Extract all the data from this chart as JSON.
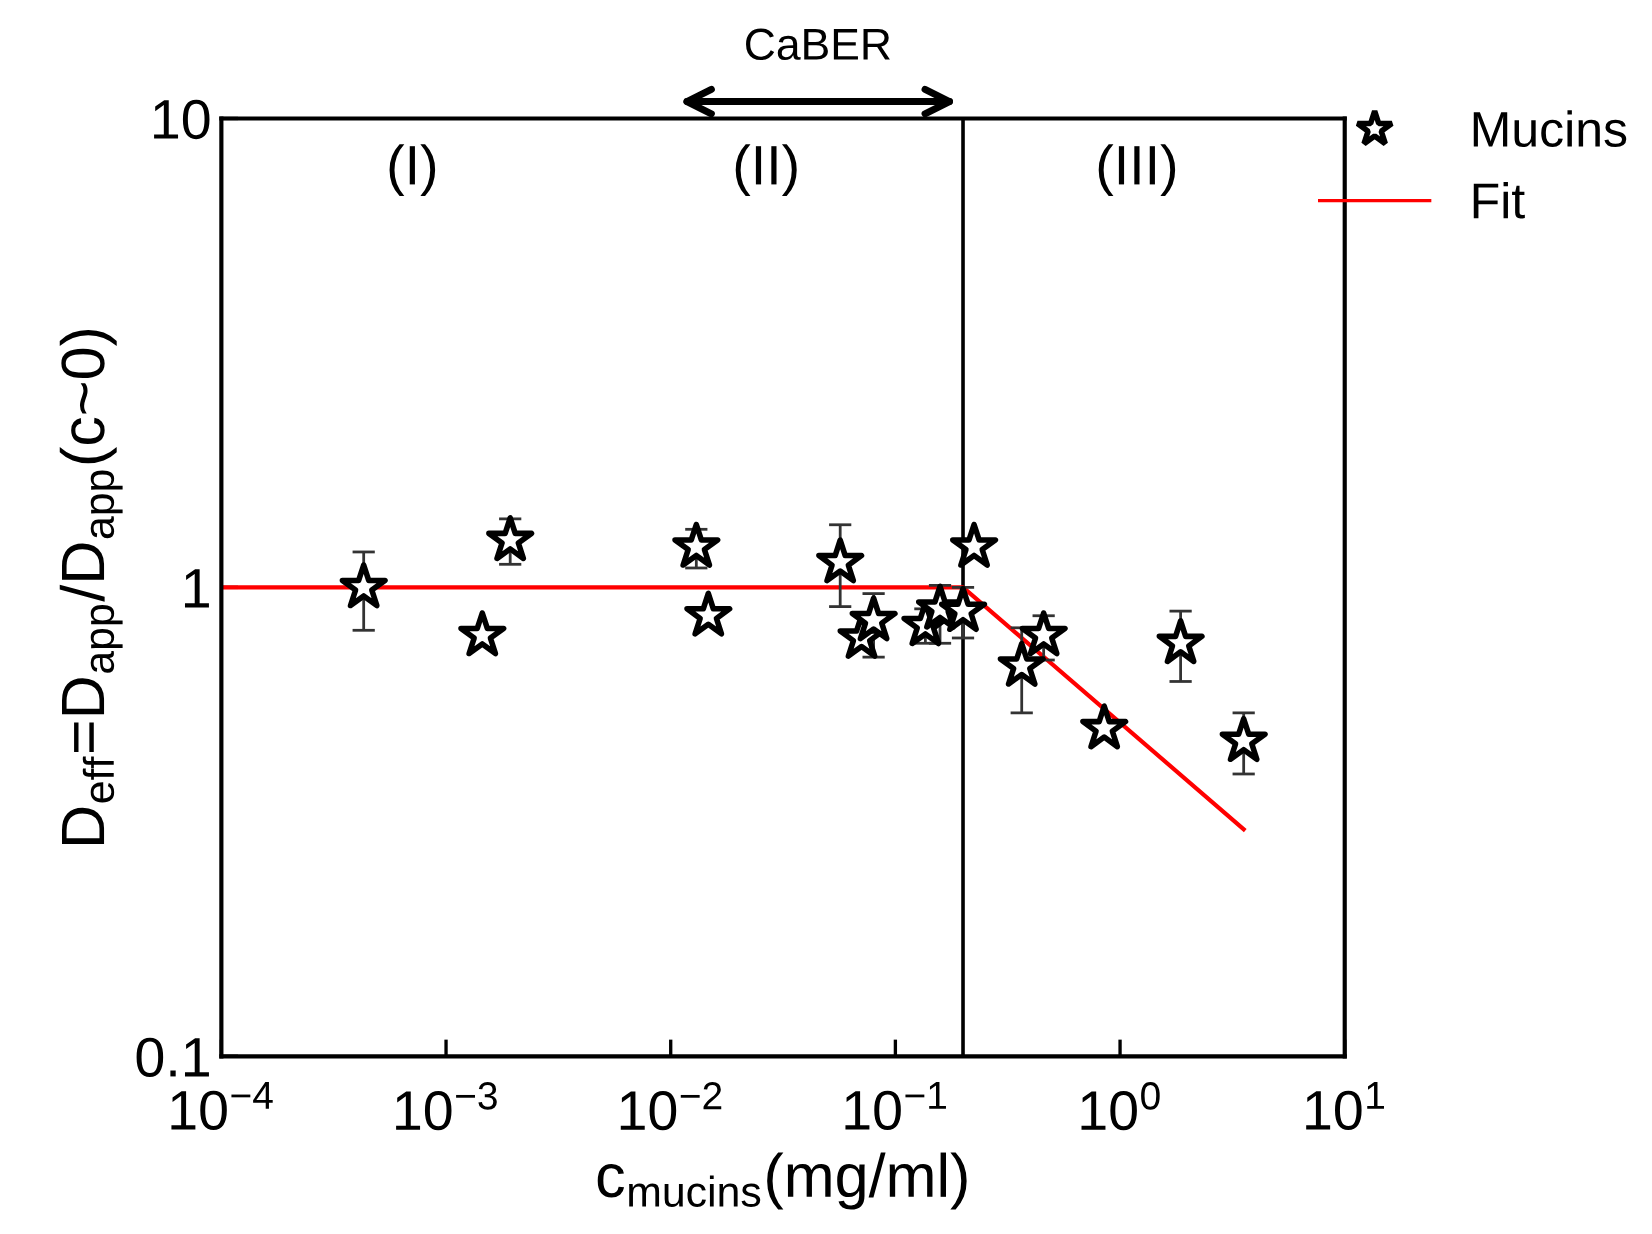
{
  "chart_data": {
    "type": "scatter",
    "xlabel": "c$_{mucins}$(mg/ml)",
    "ylabel": "D$_{eff}$=D$_{app}$/D$_{app}$(c~0)",
    "log": "xy",
    "xlim": [
      0.0001,
      10
    ],
    "ylim": [
      0.1,
      10
    ],
    "xticks": [
      {
        "value": 0.0001,
        "label": "10$^{−4}$"
      },
      {
        "value": 0.001,
        "label": "10$^{−3}$"
      },
      {
        "value": 0.01,
        "label": "10$^{−2}$"
      },
      {
        "value": 0.1,
        "label": "10$^{−1}$"
      },
      {
        "value": 1,
        "label": "10$^{0}$"
      },
      {
        "value": 10,
        "label": "10$^{1}$"
      }
    ],
    "yticks": [
      0.1,
      1,
      10
    ],
    "grid": false,
    "legend": "top right",
    "marker": "star",
    "series": [
      {
        "name": "Mucins",
        "color": "#000000",
        "x": [
          0.00043,
          0.00145,
          0.00193,
          0.013,
          0.0147,
          0.0568,
          0.0707,
          0.08,
          0.136,
          0.158,
          0.2,
          0.224,
          0.365,
          0.457,
          0.85,
          1.86,
          3.55
        ],
        "values": [
          1.0,
          0.79,
          1.26,
          1.22,
          0.87,
          1.13,
          0.78,
          0.85,
          0.83,
          0.9,
          0.89,
          1.22,
          0.68,
          0.79,
          0.5,
          0.76,
          0.47
        ],
        "errors": [
          [
            0.81,
            1.19
          ],
          null,
          [
            1.12,
            1.4
          ],
          [
            1.1,
            1.33
          ],
          null,
          [
            0.91,
            1.36
          ],
          null,
          [
            0.71,
            0.97
          ],
          [
            0.76,
            0.9
          ],
          [
            0.76,
            1.01
          ],
          [
            0.78,
            1.0
          ],
          null,
          [
            0.54,
            0.82
          ],
          [
            0.7,
            0.87
          ],
          null,
          [
            0.63,
            0.89
          ],
          [
            0.4,
            0.54
          ]
        ]
      },
      {
        "name": "Fit",
        "type": "line",
        "color": "#ff0000",
        "marker": "none",
        "line_style": "solid",
        "x": [
          0.0001,
          0.2,
          3.55
        ],
        "values": [
          1.0,
          1.0,
          0.305
        ]
      }
    ],
    "ref_lines": [
      {
        "axis": "x",
        "value": 0.2,
        "color": "#000000",
        "line_style": "solid"
      }
    ],
    "annotations": [
      "CaBER",
      "(I)",
      "(II)",
      "(III)"
    ]
  }
}
